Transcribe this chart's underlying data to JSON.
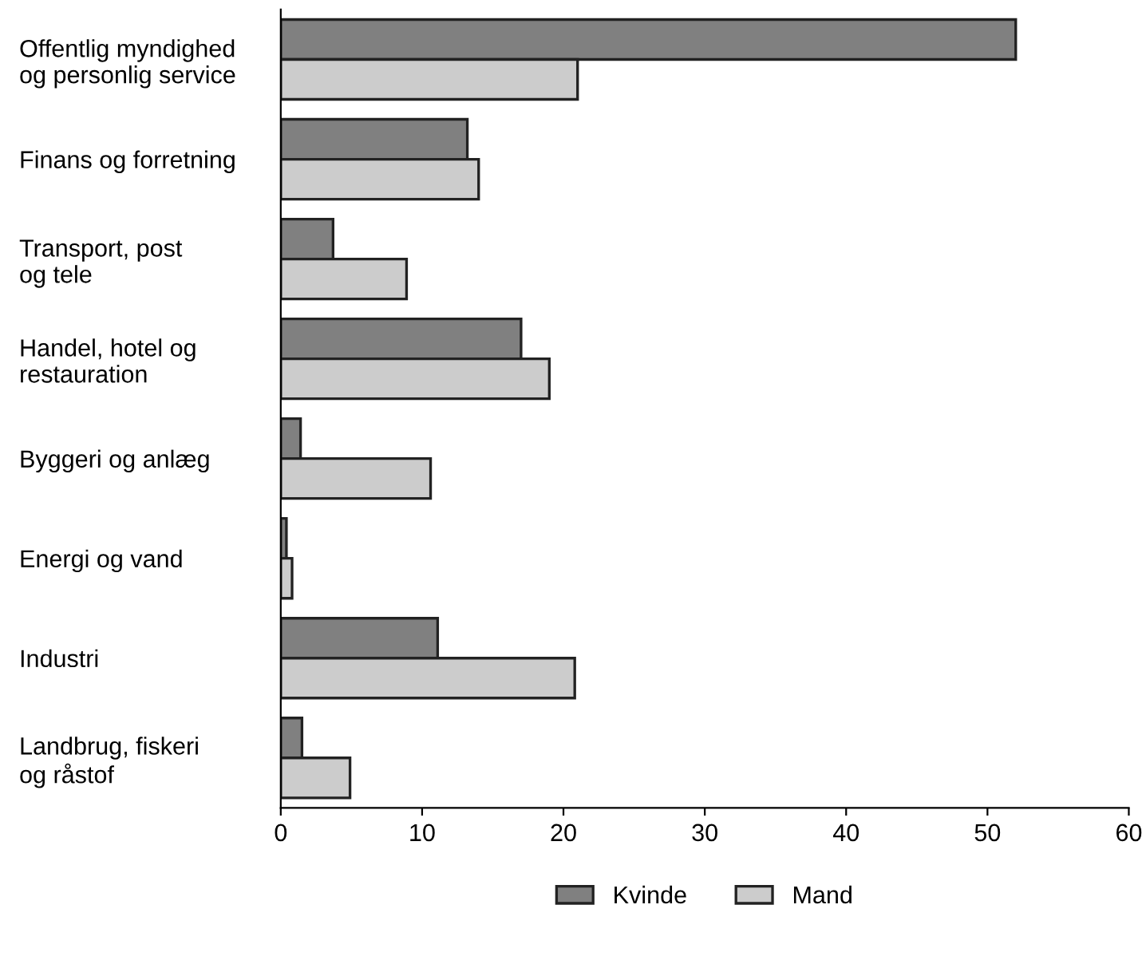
{
  "chart_data": {
    "type": "bar",
    "orientation": "horizontal",
    "categories": [
      "Offentlig myndighed\nog personlig service",
      "Finans og forretning",
      "Transport, post\nog tele",
      "Handel, hotel og\nrestauration",
      "Byggeri og anlæg",
      "Energi og vand",
      "Industri",
      "Landbrug, fiskeri\nog råstof"
    ],
    "series": [
      {
        "name": "Kvinde",
        "color": "#808080",
        "values": [
          52.0,
          13.2,
          3.7,
          17.0,
          1.4,
          0.4,
          11.1,
          1.5
        ]
      },
      {
        "name": "Mand",
        "color": "#cccccc",
        "values": [
          21.0,
          14.0,
          8.9,
          19.0,
          10.6,
          0.8,
          20.8,
          4.9
        ]
      }
    ],
    "xlim": [
      0,
      60
    ],
    "xticks": [
      0,
      10,
      20,
      30,
      40,
      50,
      60
    ],
    "grid": false,
    "legend": "bottom"
  }
}
